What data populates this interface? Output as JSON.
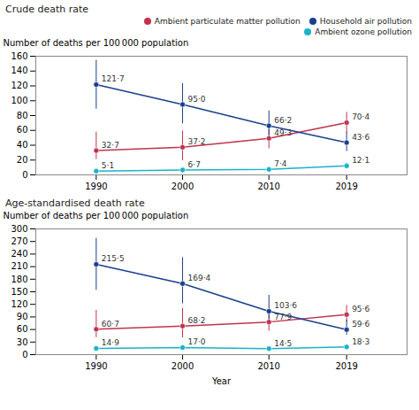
{
  "chart_data": [
    {
      "type": "line",
      "title": "Crude death rate",
      "ylabel": "Number of deaths per 100 000 population",
      "x": [
        1990,
        2000,
        2010,
        2019
      ],
      "xlim": [
        1983,
        2026
      ],
      "xticks": [
        1990,
        2000,
        2010,
        2019
      ],
      "ylim": [
        0,
        160
      ],
      "yticks": [
        0,
        20,
        40,
        60,
        80,
        100,
        120,
        140,
        160
      ],
      "grid": false,
      "legend": "upper right",
      "data_labels": true,
      "marker": "circle",
      "series": [
        {
          "name": "Ambient particulate matter pollution",
          "color": "#c0334d",
          "values": [
            32.7,
            37.2,
            49.3,
            70.4
          ],
          "value_labels": [
            "32·7",
            "37·2",
            "49·3",
            "70·4"
          ],
          "yerr_lower": [
            12,
            18,
            14,
            14
          ],
          "yerr_upper": [
            25,
            22,
            17,
            14
          ]
        },
        {
          "name": "Household air pollution",
          "color": "#1a3f8f",
          "values": [
            121.7,
            95.0,
            66.2,
            43.6
          ],
          "value_labels": [
            "121·7",
            "95·0",
            "66·2",
            "43·6"
          ],
          "yerr_lower": [
            33,
            26,
            20,
            12
          ],
          "yerr_upper": [
            33,
            28,
            20,
            14
          ]
        },
        {
          "name": "Ambient ozone pollution",
          "color": "#1ab3c8",
          "values": [
            5.1,
            6.7,
            7.4,
            12.1
          ],
          "value_labels": [
            "5·1",
            "6·7",
            "7·4",
            "12·1"
          ],
          "yerr_lower": [
            2.5,
            2,
            2.5,
            3
          ],
          "yerr_upper": [
            2.5,
            2.5,
            2.5,
            4
          ]
        }
      ]
    },
    {
      "type": "line",
      "title": "Age-standardised death rate",
      "xlabel": "Year",
      "ylabel": "Number of deaths per 100 000 population",
      "x": [
        1990,
        2000,
        2010,
        2019
      ],
      "xlim": [
        1983,
        2026
      ],
      "xticks": [
        1990,
        2000,
        2010,
        2019
      ],
      "ylim": [
        0,
        300
      ],
      "yticks": [
        0,
        30,
        60,
        90,
        120,
        150,
        180,
        210,
        240,
        270,
        300
      ],
      "grid": false,
      "data_labels": true,
      "marker": "circle",
      "series": [
        {
          "name": "Ambient particulate matter pollution",
          "color": "#c0334d",
          "values": [
            60.7,
            68.2,
            77.9,
            95.6
          ],
          "value_labels": [
            "60·7",
            "68·2",
            "77·9",
            "95·6"
          ],
          "yerr_lower": [
            20,
            28,
            22,
            18
          ],
          "yerr_upper": [
            45,
            42,
            28,
            22
          ]
        },
        {
          "name": "Household air pollution",
          "color": "#1a3f8f",
          "values": [
            215.5,
            169.4,
            103.6,
            59.6
          ],
          "value_labels": [
            "215·5",
            "169·4",
            "103·6",
            "59·6"
          ],
          "yerr_lower": [
            62,
            48,
            33,
            13
          ],
          "yerr_upper": [
            62,
            62,
            38,
            23
          ]
        },
        {
          "name": "Ambient ozone pollution",
          "color": "#1ab3c8",
          "values": [
            14.9,
            17.0,
            14.5,
            18.3
          ],
          "value_labels": [
            "14·9",
            "17·0",
            "14·5",
            "18·3"
          ],
          "yerr_lower": [
            5,
            5,
            5,
            5
          ],
          "yerr_upper": [
            5,
            5,
            5,
            5
          ]
        }
      ]
    }
  ]
}
